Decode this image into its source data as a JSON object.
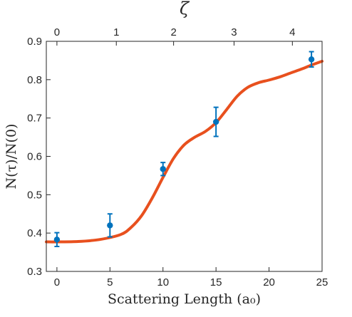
{
  "chart_data": {
    "type": "scatter",
    "xlabel": "Scattering Length (a₀)",
    "ylabel": "N(τ)/N(0)",
    "top_xlabel": "ζ",
    "xlim": [
      -1,
      25
    ],
    "ylim": [
      0.3,
      0.9
    ],
    "x_ticks": [
      0,
      5,
      10,
      15,
      20,
      25
    ],
    "y_ticks": [
      0.3,
      0.4,
      0.5,
      0.6,
      0.7,
      0.8,
      0.9
    ],
    "y_tick_labels": [
      "0.3",
      "0.4",
      "0.5",
      "0.6",
      "0.7",
      "0.8",
      "0.9"
    ],
    "top_ticks": [
      {
        "label": "0",
        "x": 0
      },
      {
        "label": "1",
        "x": 5.6
      },
      {
        "label": "2",
        "x": 11.0
      },
      {
        "label": "3",
        "x": 16.7
      },
      {
        "label": "4",
        "x": 22.2
      }
    ],
    "grid": false,
    "colors": {
      "data": "#0072BD",
      "fit": "#E8501E",
      "axes": "#262626"
    },
    "series": [
      {
        "kind": "errorbar",
        "points": [
          {
            "x": 0,
            "y": 0.383,
            "err_low": 0.018,
            "err_high": 0.018
          },
          {
            "x": 5,
            "y": 0.42,
            "err_low": 0.03,
            "err_high": 0.03
          },
          {
            "x": 10,
            "y": 0.567,
            "err_low": 0.017,
            "err_high": 0.017
          },
          {
            "x": 15,
            "y": 0.69,
            "err_low": 0.038,
            "err_high": 0.038
          },
          {
            "x": 24,
            "y": 0.853,
            "err_low": 0.02,
            "err_high": 0.02
          }
        ]
      },
      {
        "kind": "line",
        "x": [
          -1,
          0,
          2,
          4,
          6,
          7,
          8,
          9,
          10,
          11,
          12,
          13,
          14,
          15,
          16,
          17,
          18,
          19,
          20,
          21,
          22,
          23,
          24,
          25
        ],
        "y": [
          0.377,
          0.377,
          0.378,
          0.383,
          0.396,
          0.415,
          0.446,
          0.492,
          0.545,
          0.595,
          0.63,
          0.65,
          0.665,
          0.688,
          0.722,
          0.757,
          0.78,
          0.792,
          0.799,
          0.807,
          0.817,
          0.827,
          0.838,
          0.848
        ]
      }
    ]
  }
}
